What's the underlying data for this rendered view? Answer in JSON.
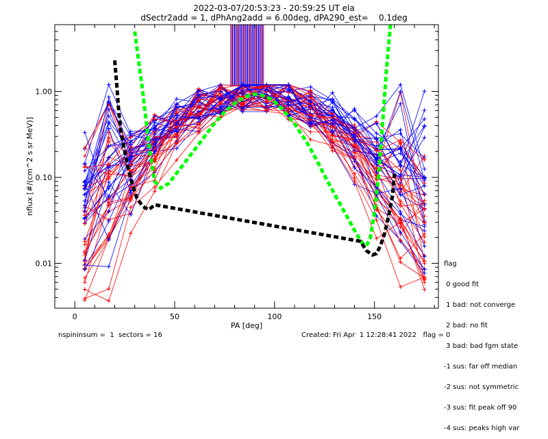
{
  "title_line1": "2022-03-07/20:53:23 - 20:59:25 UT ela",
  "title_line2": "dSectr2add = 1, dPhAng2add = 6.00deg, dPA290_est=    0.1deg",
  "footer": {
    "left": "nspininsum =  1  sectors = 16",
    "right": "Created: Fri Apr  1 12:28:41 2022   flag = 0"
  },
  "legend": {
    "title": "flag",
    "items": [
      " 0 good fit",
      " 1 bad: not converge",
      " 2 bad: no fit",
      " 3 bad: bad fgm state",
      "-1 sus: far off median",
      "-2 sus: not symmetric",
      "-3 sus: fit peak off 90",
      "-4 sus: peaks high var"
    ]
  },
  "colors": {
    "red": "#ff0000",
    "blue": "#0000ff",
    "green": "#00ff00",
    "black": "#000000"
  },
  "chart_data": {
    "type": "line",
    "xlabel": "PA [deg]",
    "ylabel": "nflux [#/(cm^2 s sr MeV)]",
    "xlim": [
      -10,
      182
    ],
    "ylim": [
      0.003,
      6.0
    ],
    "ylog": true,
    "xticks": [
      0,
      50,
      100,
      150
    ],
    "yticks": [
      {
        "value": 0.01,
        "label": "0.01"
      },
      {
        "value": 0.1,
        "label": "0.10"
      },
      {
        "value": 1.0,
        "label": "1.00"
      }
    ],
    "series": [
      {
        "color": "green",
        "style": "dotted-thick",
        "x": [
          30,
          34,
          37,
          40,
          43,
          47,
          52,
          57,
          63,
          69,
          75,
          81,
          86,
          90,
          94,
          99,
          104,
          110,
          116,
          121,
          126,
          131,
          136,
          141,
          144,
          146,
          148,
          150,
          152,
          154,
          156,
          158
        ],
        "y": [
          5.0,
          1.0,
          0.25,
          0.09,
          0.075,
          0.085,
          0.12,
          0.17,
          0.26,
          0.4,
          0.58,
          0.76,
          0.88,
          0.93,
          0.9,
          0.8,
          0.62,
          0.42,
          0.26,
          0.16,
          0.095,
          0.058,
          0.036,
          0.022,
          0.017,
          0.016,
          0.02,
          0.04,
          0.1,
          0.4,
          1.8,
          6.0
        ]
      },
      {
        "color": "black",
        "style": "dotted-thick",
        "x": [
          20,
          21,
          22,
          23,
          25,
          27,
          29,
          31,
          34,
          37,
          40,
          143,
          146,
          149,
          151,
          153,
          155,
          157,
          159,
          160
        ],
        "y": [
          2.3,
          1.2,
          0.6,
          0.35,
          0.2,
          0.12,
          0.08,
          0.058,
          0.046,
          0.042,
          0.048,
          0.018,
          0.014,
          0.0125,
          0.013,
          0.016,
          0.022,
          0.035,
          0.06,
          0.11
        ]
      }
    ]
  }
}
